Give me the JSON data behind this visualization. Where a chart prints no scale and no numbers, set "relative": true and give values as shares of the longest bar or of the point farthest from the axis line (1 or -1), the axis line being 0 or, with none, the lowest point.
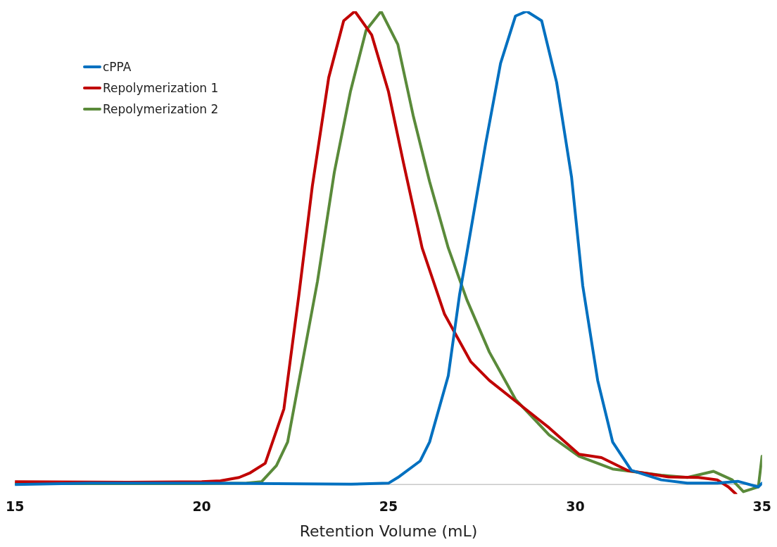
{
  "chart_data": {
    "type": "line",
    "xlabel": "Retention Volume (mL)",
    "xlim": [
      15,
      35
    ],
    "xticks": [
      15,
      20,
      25,
      30,
      35
    ],
    "relative": true,
    "grid": false,
    "legend": "top left",
    "marker": "none",
    "line_style": "solid",
    "series": [
      {
        "name": "cPPA",
        "color": "#0070c0",
        "x": [
          15,
          17,
          20,
          22,
          24,
          25,
          25.25,
          25.85,
          26.1,
          26.6,
          26.9,
          27.1,
          27.6,
          28.0,
          28.4,
          28.7,
          29.1,
          29.5,
          29.9,
          30.2,
          30.6,
          31.0,
          31.5,
          32.3,
          33.0,
          33.8,
          34.35,
          34.9,
          35.0
        ],
        "values": [
          0,
          0.003,
          0.003,
          0.002,
          0.001,
          0.003,
          0.015,
          0.05,
          0.09,
          0.23,
          0.4,
          0.49,
          0.72,
          0.89,
          0.99,
          1,
          0.98,
          0.85,
          0.65,
          0.42,
          0.22,
          0.09,
          0.03,
          0.01,
          0.003,
          0.003,
          0.007,
          -0.005,
          0.003
        ]
      },
      {
        "name": "Repolymerization 1",
        "color": "#c00000",
        "x": [
          15,
          18,
          20,
          20.5,
          21,
          21.3,
          21.7,
          22.2,
          22.6,
          22.96,
          23.4,
          23.8,
          24.1,
          24.55,
          25.0,
          25.4,
          25.9,
          26.5,
          27.2,
          27.7,
          28.5,
          29.3,
          30.1,
          30.7,
          31.4,
          32.5,
          33.3,
          33.8,
          34.1,
          34.3
        ],
        "values": [
          0.006,
          0.005,
          0.006,
          0.008,
          0.015,
          0.025,
          0.045,
          0.16,
          0.4,
          0.63,
          0.86,
          0.98,
          1,
          0.95,
          0.83,
          0.68,
          0.5,
          0.36,
          0.26,
          0.22,
          0.17,
          0.12,
          0.064,
          0.057,
          0.03,
          0.016,
          0.015,
          0.01,
          -0.005,
          -0.02
        ]
      },
      {
        "name": "Repolymerization 2",
        "color": "#5a8a3a",
        "x": [
          15,
          18,
          20,
          21.2,
          21.6,
          22.0,
          22.3,
          22.7,
          23.1,
          23.55,
          23.98,
          24.4,
          24.8,
          25.25,
          25.66,
          26.1,
          26.6,
          27.1,
          27.7,
          28.4,
          29.3,
          30.1,
          31.0,
          32.3,
          33.0,
          33.7,
          34.2,
          34.5,
          34.9,
          35.0
        ],
        "values": [
          0.002,
          0.002,
          0.002,
          0.003,
          0.006,
          0.04,
          0.09,
          0.26,
          0.43,
          0.66,
          0.83,
          0.96,
          1,
          0.93,
          0.78,
          0.64,
          0.5,
          0.39,
          0.28,
          0.18,
          0.105,
          0.06,
          0.033,
          0.02,
          0.015,
          0.028,
          0.01,
          -0.015,
          -0.005,
          0.06
        ]
      }
    ]
  }
}
